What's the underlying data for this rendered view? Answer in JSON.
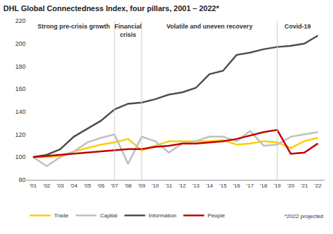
{
  "chart_data": {
    "type": "line",
    "title": "DHL Global Connectedness Index, four pillars, 2001 – 2022*",
    "categories": [
      "'01",
      "'02",
      "'03",
      "'04",
      "'05",
      "'06",
      "'07",
      "'08",
      "'09",
      "'10",
      "'11",
      "'12",
      "'13",
      "'14",
      "'15",
      "'16",
      "'17",
      "'18",
      "'19",
      "'20",
      "'21",
      "'22"
    ],
    "series": [
      {
        "name": "Trade",
        "color": "#ffcc00",
        "values": [
          100,
          100,
          101,
          105,
          108,
          111,
          113,
          116,
          106,
          110,
          114,
          114,
          114,
          114,
          115,
          111,
          112,
          114,
          113,
          108,
          114,
          117
        ]
      },
      {
        "name": "Capital",
        "color": "#bfbfbf",
        "values": [
          100,
          92,
          100,
          105,
          113,
          117,
          120,
          94,
          118,
          114,
          104,
          112,
          114,
          118,
          118,
          114,
          123,
          110,
          111,
          118,
          120,
          122
        ]
      },
      {
        "name": "Information",
        "color": "#4d4d4d",
        "values": [
          100,
          102,
          107,
          118,
          125,
          132,
          142,
          147,
          148,
          151,
          155,
          157,
          161,
          173,
          176,
          190,
          192,
          195,
          197,
          198,
          200,
          207
        ]
      },
      {
        "name": "People",
        "color": "#c00000",
        "values": [
          100,
          101,
          102,
          103,
          104,
          105,
          106,
          107,
          107,
          109,
          110,
          112,
          112,
          113,
          114,
          116,
          119,
          122,
          124,
          103,
          104,
          112
        ]
      }
    ],
    "ylim": [
      80,
      220
    ],
    "yticks": [
      80,
      100,
      120,
      140,
      160,
      180,
      200,
      220
    ],
    "grid": false,
    "legend": "bottom left",
    "annotations": [
      "Strong pre-crisis growth",
      "Financial crisis",
      "Volatile and uneven recovery",
      "Covid-19"
    ],
    "note": "*2022 projected"
  }
}
